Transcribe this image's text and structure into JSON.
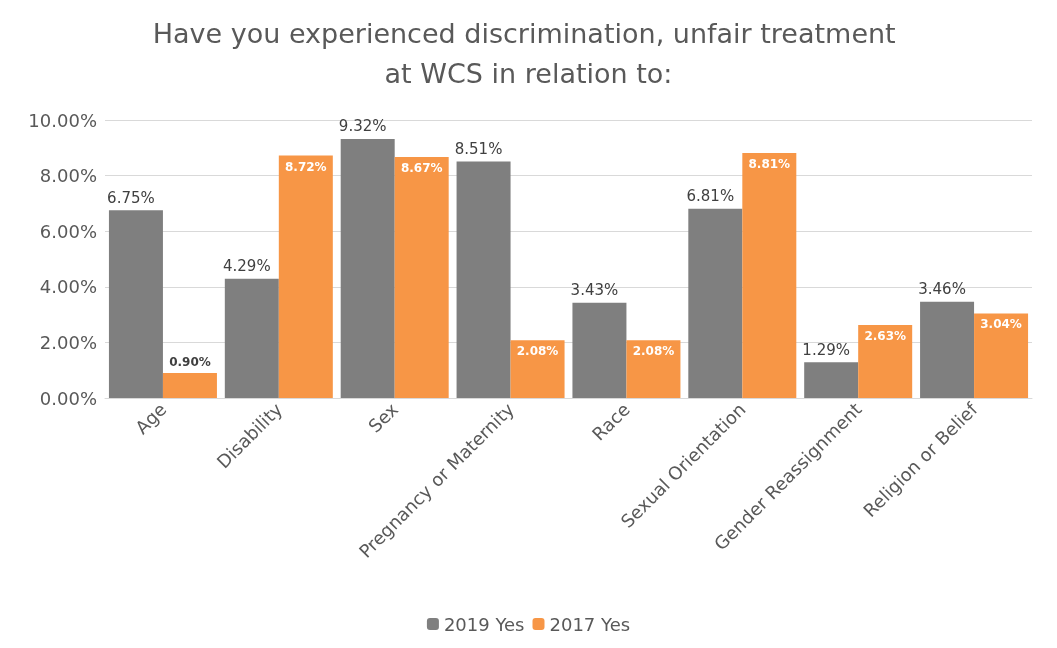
{
  "chart_data": {
    "type": "bar",
    "title": "Have you experienced discrimination, unfair treatment at WCS in relation to:",
    "categories": [
      "Age",
      "Disability",
      "Sex",
      "Pregnancy or Maternity",
      "Race",
      "Sexual Orientation",
      "Gender Reassignment",
      "Religion or Belief"
    ],
    "series": [
      {
        "name": "2019 Yes",
        "color": "#7f7f7f",
        "values": [
          6.75,
          4.29,
          9.32,
          8.51,
          3.43,
          6.81,
          1.29,
          3.46
        ],
        "value_labels": [
          "6.75%",
          "4.29%",
          "9.32%",
          "8.51%",
          "3.43%",
          "6.81%",
          "1.29%",
          "3.46%"
        ]
      },
      {
        "name": "2017 Yes",
        "color": "#f79646",
        "values": [
          0.9,
          8.72,
          8.67,
          2.08,
          2.08,
          8.81,
          2.63,
          3.04
        ],
        "value_labels": [
          "0.90%",
          "8.72%",
          "8.67%",
          "2.08%",
          "2.08%",
          "8.81%",
          "2.63%",
          "3.04%"
        ]
      }
    ],
    "ylim": [
      0,
      10
    ],
    "yticks": [
      {
        "value": 0,
        "label": "0.00%"
      },
      {
        "value": 2,
        "label": "2.00%"
      },
      {
        "value": 4,
        "label": "4.00%"
      },
      {
        "value": 6,
        "label": "6.00%"
      },
      {
        "value": 8,
        "label": "8.00%"
      },
      {
        "value": 10,
        "label": "10.00%"
      }
    ],
    "grid": "y",
    "legend": "bottom"
  }
}
